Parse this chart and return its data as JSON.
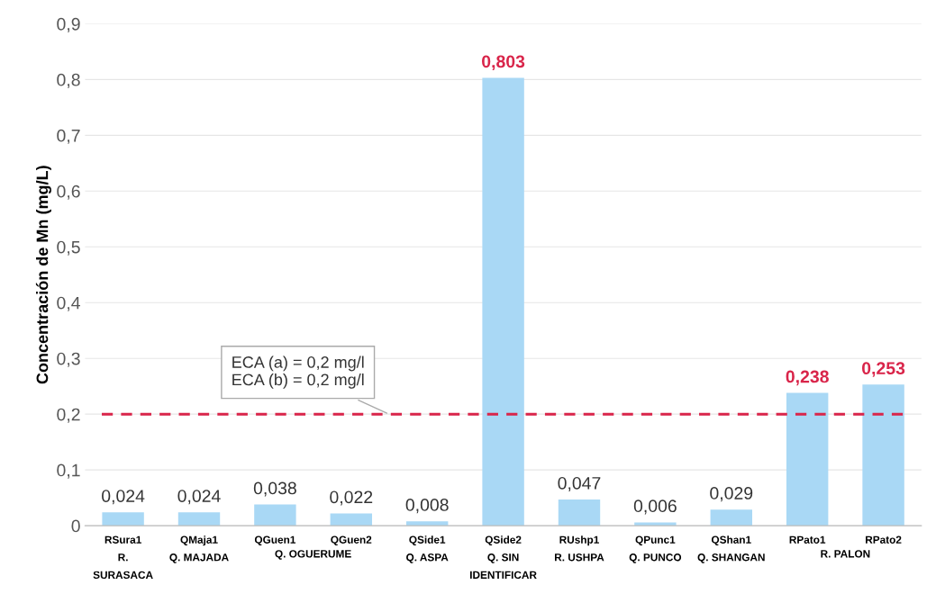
{
  "chart_data": {
    "type": "bar",
    "ylabel": "Concentración de Mn (mg/L)",
    "categories": [
      "RSura1\nR.\nSURASACA",
      "QMaja1\nQ. MAJADA",
      "QGuen1",
      "QGuen2",
      "QSide1\nQ. ASPA",
      "QSide2\nQ. SIN\nIDENTIFICAR",
      "RUshp1\nR. USHPA",
      "QPunc1\nQ. PUNCO",
      "QShan1\nQ. SHANGAN",
      "RPato1",
      "RPato2"
    ],
    "values": [
      0.024,
      0.024,
      0.038,
      0.022,
      0.008,
      0.803,
      0.047,
      0.006,
      0.029,
      0.238,
      0.253
    ],
    "color": "#a9d8f5",
    "data_labels": true,
    "value_labels": [
      "0,024",
      "0,024",
      "0,038",
      "0,022",
      "0,008",
      "0,803",
      "0,047",
      "0,006",
      "0,029",
      "0,238",
      "0,253"
    ],
    "ylim": [
      0,
      0.9
    ],
    "yticks": [
      {
        "value": 0,
        "label": "0"
      },
      {
        "value": 0.1,
        "label": "0,1"
      },
      {
        "value": 0.2,
        "label": "0,2"
      },
      {
        "value": 0.3,
        "label": "0,3"
      },
      {
        "value": 0.4,
        "label": "0,4"
      },
      {
        "value": 0.5,
        "label": "0,5"
      },
      {
        "value": 0.6,
        "label": "0,6"
      },
      {
        "value": 0.7,
        "label": "0,7"
      },
      {
        "value": 0.8,
        "label": "0,8"
      },
      {
        "value": 0.9,
        "label": "0,9"
      }
    ],
    "grid": "y",
    "ref_lines": [
      {
        "axis": "y",
        "value": 0.2,
        "label": "ECA (a) = 0,2 mg/l\nECA (b) = 0,2 mg/l",
        "color": "#d9254a",
        "line_style": "dashed"
      }
    ],
    "annotations": [
      "Q. OGUERUME",
      "R. PALON"
    ]
  }
}
